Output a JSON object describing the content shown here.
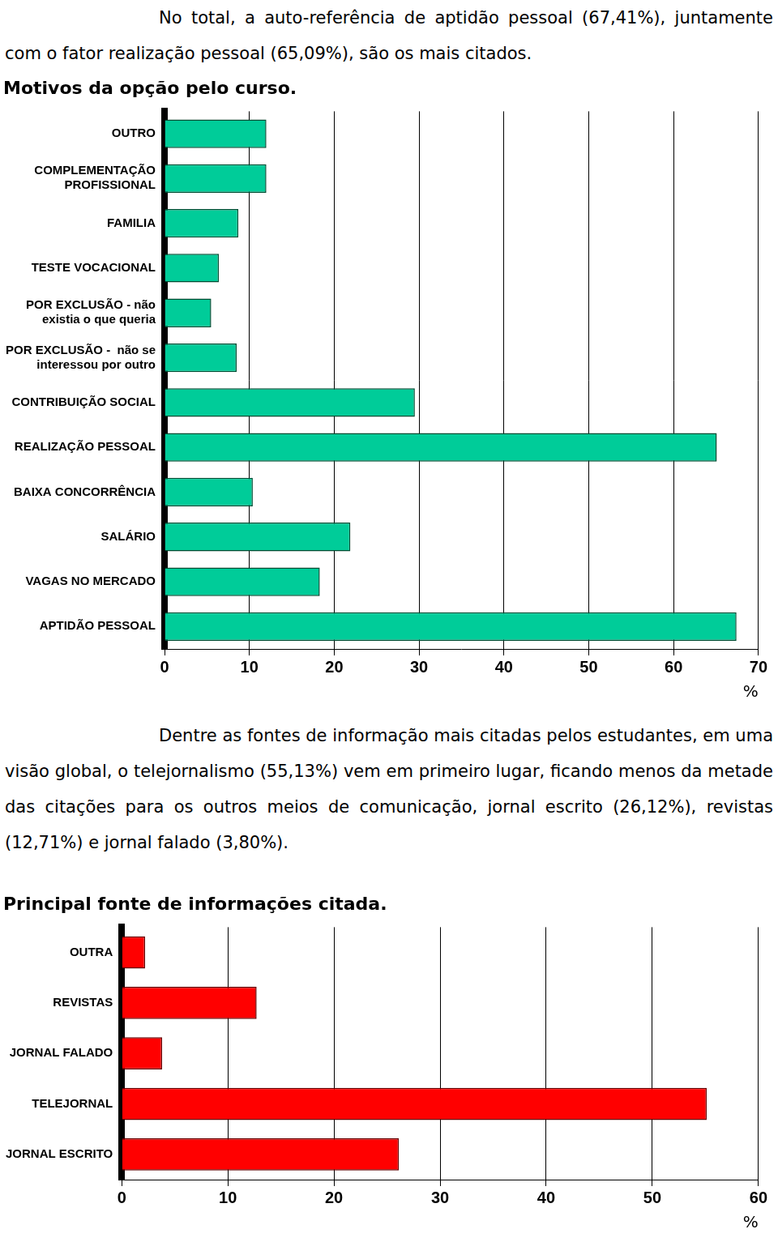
{
  "paragraphs": [
    "No total, a auto-referência de aptidão pessoal (67,41%), juntamente com o fator realização pessoal (65,09%), são os mais citados.",
    "Dentre as fontes de informação mais citadas pelos estudantes, em uma visão global, o telejornalismo (55,13%) vem em primeiro lugar, ficando menos da metade das citações para os outros meios de comunicação, jornal escrito (26,12%), revistas (12,71%) e jornal falado (3,80%)."
  ],
  "chart_data": [
    {
      "type": "bar",
      "orientation": "horizontal",
      "title": "Motivos da opção pelo curso.",
      "categories": [
        "OUTRO",
        [
          "COMPLEMENTAÇÃO",
          "PROFISSIONAL"
        ],
        "FAMILIA",
        "TESTE VOCACIONAL",
        [
          "POR EXCLUSÃO - não",
          "existia o que queria"
        ],
        [
          "POR EXCLUSÃO -  não se",
          "interessou por outro"
        ],
        "CONTRIBUIÇÃO SOCIAL",
        "REALIZAÇÃO PESSOAL",
        "BAIXA CONCORRÊNCIA",
        "SALÁRIO",
        "VAGAS NO MERCADO",
        "APTIDÃO PESSOAL"
      ],
      "values": [
        12,
        12,
        8.7,
        6.4,
        5.5,
        8.5,
        29.5,
        65.09,
        10.4,
        21.9,
        18.3,
        67.41
      ],
      "color": "#00cc99",
      "xlim": [
        0,
        70
      ],
      "xticks": [
        0,
        10,
        20,
        30,
        40,
        50,
        60,
        70
      ],
      "xlabel": "%",
      "grid": true
    },
    {
      "type": "bar",
      "orientation": "horizontal",
      "title": "Principal fonte de informações citada.",
      "categories": [
        "OUTRA",
        "REVISTAS",
        "JORNAL FALADO",
        "TELEJORNAL",
        "JORNAL ESCRITO"
      ],
      "values": [
        2.2,
        12.71,
        3.8,
        55.13,
        26.12
      ],
      "color": "#ff0000",
      "xlim": [
        0,
        60
      ],
      "xticks": [
        0,
        10,
        20,
        30,
        40,
        50,
        60
      ],
      "xlabel": "%",
      "grid": true
    }
  ]
}
